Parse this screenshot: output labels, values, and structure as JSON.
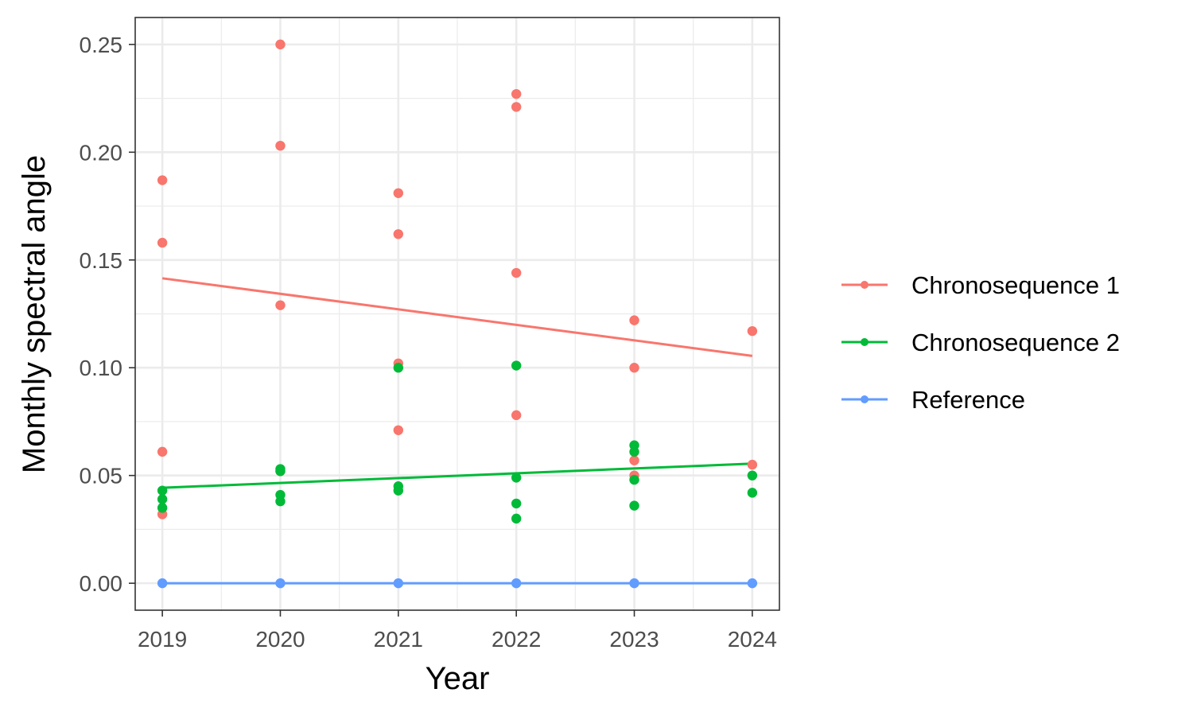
{
  "chart_data": {
    "type": "scatter",
    "title": "",
    "xlabel": "Year",
    "ylabel": "Monthly spectral angle",
    "xlim": [
      2018.77,
      2024.23
    ],
    "ylim": [
      -0.0125,
      0.2625
    ],
    "x_ticks": [
      "2019",
      "2020",
      "2021",
      "2022",
      "2023",
      "2024"
    ],
    "y_ticks": [
      "0.00",
      "0.05",
      "0.10",
      "0.15",
      "0.20",
      "0.25"
    ],
    "grid": true,
    "legend_position": "right",
    "series": [
      {
        "name": "Chronosequence 1",
        "color": "#F8766D",
        "points": [
          [
            2019,
            0.187
          ],
          [
            2019,
            0.158
          ],
          [
            2019,
            0.061
          ],
          [
            2019,
            0.032
          ],
          [
            2020,
            0.25
          ],
          [
            2020,
            0.203
          ],
          [
            2020,
            0.129
          ],
          [
            2020,
            0.052
          ],
          [
            2021,
            0.181
          ],
          [
            2021,
            0.162
          ],
          [
            2021,
            0.102
          ],
          [
            2021,
            0.071
          ],
          [
            2022,
            0.227
          ],
          [
            2022,
            0.221
          ],
          [
            2022,
            0.144
          ],
          [
            2022,
            0.078
          ],
          [
            2023,
            0.122
          ],
          [
            2023,
            0.1
          ],
          [
            2023,
            0.057
          ],
          [
            2023,
            0.05
          ],
          [
            2024,
            0.117
          ],
          [
            2024,
            0.055
          ]
        ],
        "trend": [
          [
            2019,
            0.1415
          ],
          [
            2024,
            0.1055
          ]
        ]
      },
      {
        "name": "Chronosequence 2",
        "color": "#00BA38",
        "points": [
          [
            2019,
            0.043
          ],
          [
            2019,
            0.039
          ],
          [
            2019,
            0.035
          ],
          [
            2020,
            0.053
          ],
          [
            2020,
            0.052
          ],
          [
            2020,
            0.041
          ],
          [
            2020,
            0.038
          ],
          [
            2021,
            0.1
          ],
          [
            2021,
            0.045
          ],
          [
            2021,
            0.043
          ],
          [
            2022,
            0.101
          ],
          [
            2022,
            0.049
          ],
          [
            2022,
            0.037
          ],
          [
            2022,
            0.03
          ],
          [
            2023,
            0.064
          ],
          [
            2023,
            0.061
          ],
          [
            2023,
            0.048
          ],
          [
            2023,
            0.036
          ],
          [
            2024,
            0.05
          ],
          [
            2024,
            0.042
          ]
        ],
        "trend": [
          [
            2019,
            0.0443
          ],
          [
            2024,
            0.0555
          ]
        ]
      },
      {
        "name": "Reference",
        "color": "#619CFF",
        "points": [
          [
            2019,
            0.0
          ],
          [
            2020,
            0.0
          ],
          [
            2021,
            0.0
          ],
          [
            2022,
            0.0
          ],
          [
            2023,
            0.0
          ],
          [
            2024,
            0.0
          ]
        ],
        "trend": [
          [
            2019,
            0.0
          ],
          [
            2024,
            0.0
          ]
        ]
      }
    ]
  }
}
